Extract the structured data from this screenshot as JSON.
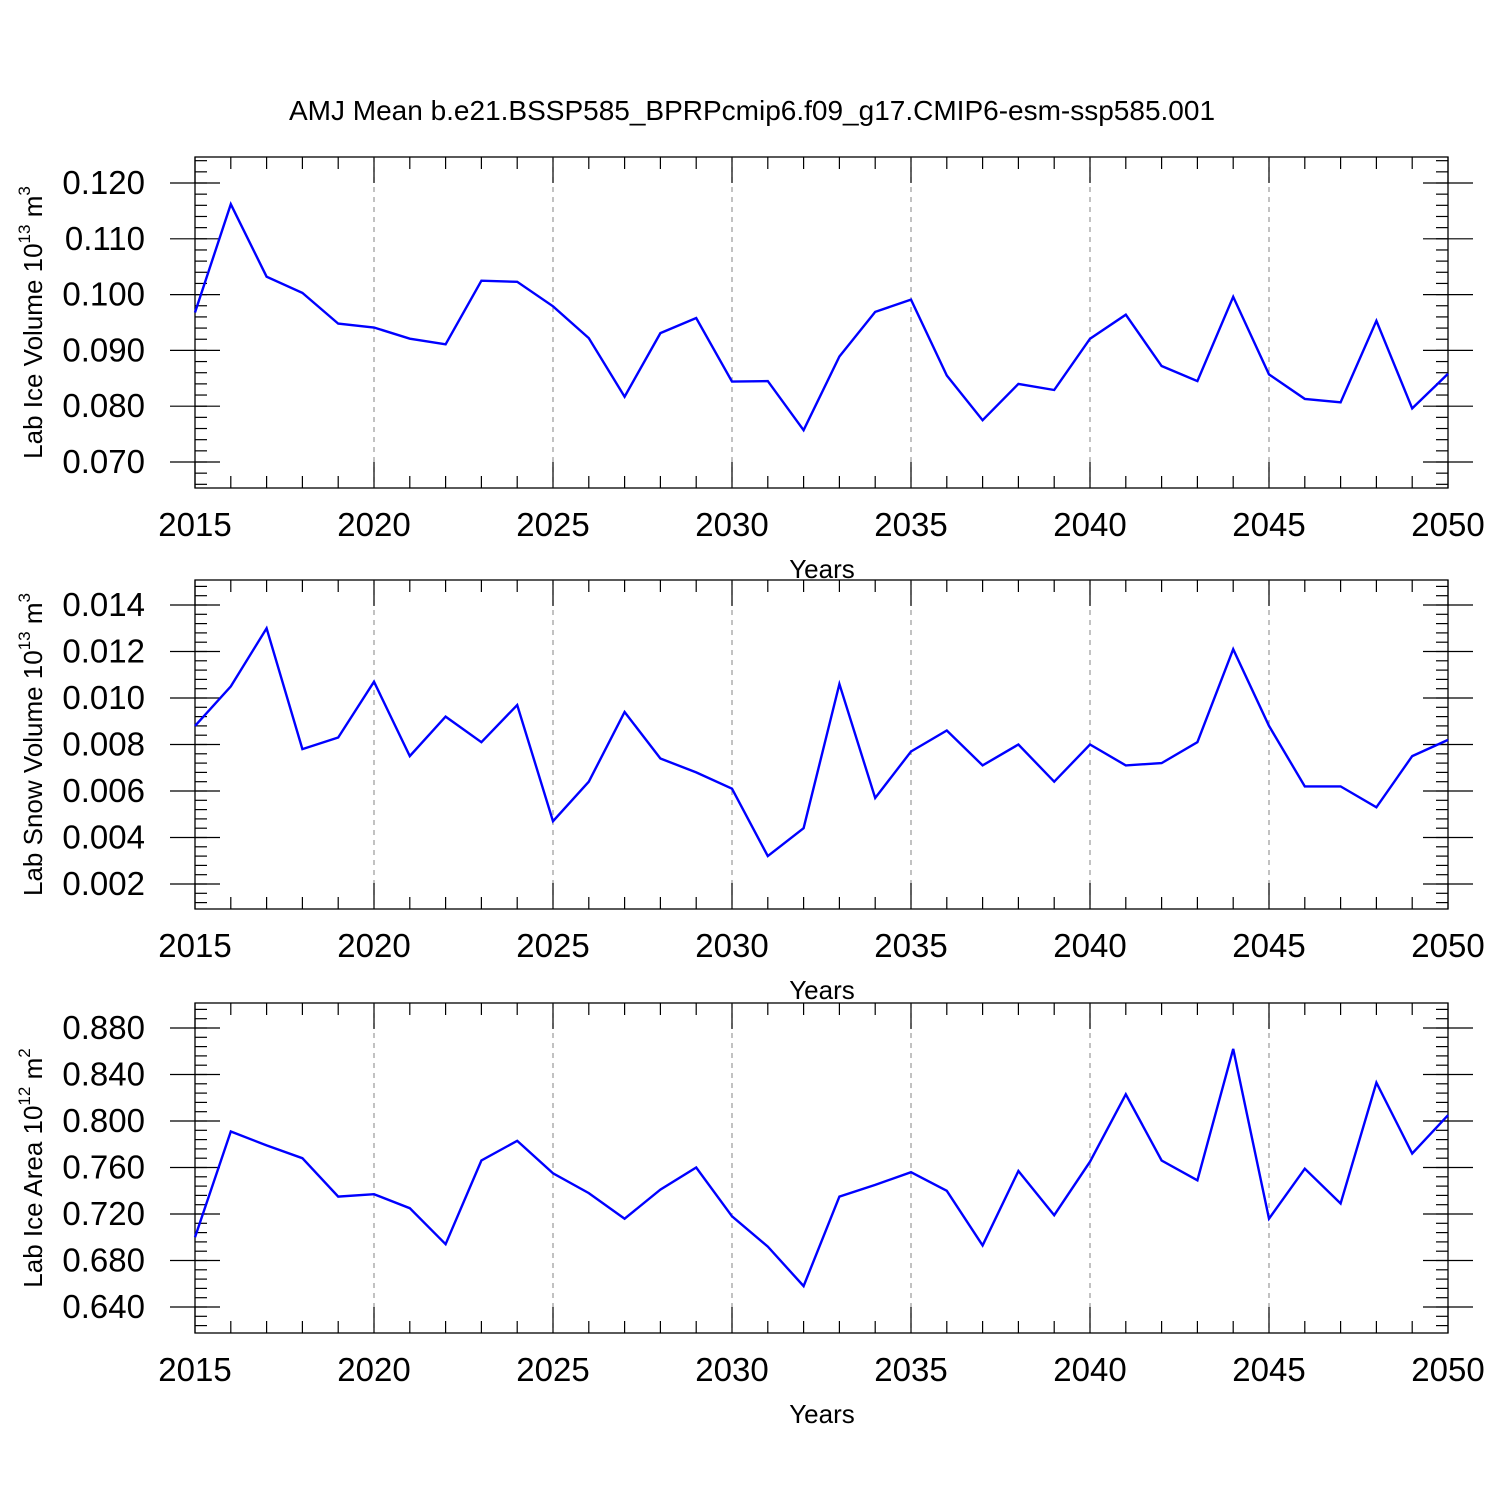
{
  "figure_title": "AMJ Mean b.e21.BSSP585_BPRPcmip6.f09_g17.CMIP6-esm-ssp585.001",
  "chart_data": [
    {
      "type": "line",
      "ylabel_main": "Lab Ice Volume 10",
      "ylabel_exp": "13",
      "ylabel_unit": " m",
      "ylabel_unit_exp": "3",
      "xlabel": "Years",
      "xlim": [
        2015,
        2050
      ],
      "ylim": [
        0.065,
        0.125
      ],
      "x_ticks": [
        2015,
        2020,
        2025,
        2030,
        2035,
        2040,
        2045,
        2050
      ],
      "x_tick_labels": [
        "2015",
        "2020",
        "2025",
        "2030",
        "2035",
        "2040",
        "2045",
        "2050"
      ],
      "y_ticks": [
        0.07,
        0.08,
        0.09,
        0.1,
        0.11,
        0.12
      ],
      "y_tick_labels": [
        "0.070",
        "0.080",
        "0.090",
        "0.100",
        "0.110",
        "0.120"
      ],
      "y_minor_step": 0.002,
      "grid": "vertical dashed at major x ticks",
      "line_color": "#0000ff",
      "x": [
        2015,
        2016,
        2017,
        2018,
        2019,
        2020,
        2021,
        2022,
        2023,
        2024,
        2025,
        2026,
        2027,
        2028,
        2029,
        2030,
        2031,
        2032,
        2033,
        2034,
        2035,
        2036,
        2037,
        2038,
        2039,
        2040,
        2041,
        2042,
        2043,
        2044,
        2045,
        2046,
        2047,
        2048,
        2049,
        2050
      ],
      "values": [
        0.0968,
        0.1162,
        0.1032,
        0.1003,
        0.0948,
        0.0941,
        0.0921,
        0.0911,
        0.1025,
        0.1023,
        0.0979,
        0.0922,
        0.0817,
        0.0931,
        0.0958,
        0.0844,
        0.0845,
        0.0757,
        0.0889,
        0.0969,
        0.0991,
        0.0855,
        0.0775,
        0.084,
        0.0829,
        0.0921,
        0.0964,
        0.0872,
        0.0845,
        0.0996,
        0.0857,
        0.0813,
        0.0807,
        0.0953,
        0.0796,
        0.0858
      ]
    },
    {
      "type": "line",
      "ylabel_main": "Lab Snow Volume 10",
      "ylabel_exp": "13",
      "ylabel_unit": " m",
      "ylabel_unit_exp": "3",
      "xlabel": "Years",
      "xlim": [
        2015,
        2050
      ],
      "ylim": [
        0.0015,
        0.015
      ],
      "x_ticks": [
        2015,
        2020,
        2025,
        2030,
        2035,
        2040,
        2045,
        2050
      ],
      "x_tick_labels": [
        "2015",
        "2020",
        "2025",
        "2030",
        "2035",
        "2040",
        "2045",
        "2050"
      ],
      "y_ticks": [
        0.002,
        0.004,
        0.006,
        0.008,
        0.01,
        0.012,
        0.014
      ],
      "y_tick_labels": [
        "0.002",
        "0.004",
        "0.006",
        "0.008",
        "0.010",
        "0.012",
        "0.014"
      ],
      "y_minor_step": 0.0004,
      "grid": "vertical dashed at major x ticks",
      "line_color": "#0000ff",
      "x": [
        2015,
        2016,
        2017,
        2018,
        2019,
        2020,
        2021,
        2022,
        2023,
        2024,
        2025,
        2026,
        2027,
        2028,
        2029,
        2030,
        2031,
        2032,
        2033,
        2034,
        2035,
        2036,
        2037,
        2038,
        2039,
        2040,
        2041,
        2042,
        2043,
        2044,
        2045,
        2046,
        2047,
        2048,
        2049,
        2050
      ],
      "values": [
        0.0088,
        0.0105,
        0.013,
        0.0078,
        0.0083,
        0.0107,
        0.0075,
        0.0092,
        0.0081,
        0.0097,
        0.0047,
        0.0064,
        0.0094,
        0.0074,
        0.0068,
        0.0061,
        0.0032,
        0.0044,
        0.0106,
        0.0057,
        0.0077,
        0.0086,
        0.0071,
        0.008,
        0.0064,
        0.008,
        0.0071,
        0.0072,
        0.0081,
        0.0121,
        0.0088,
        0.0062,
        0.0062,
        0.0053,
        0.0075,
        0.0082
      ]
    },
    {
      "type": "line",
      "ylabel_main": "Lab Ice Area 10",
      "ylabel_exp": "12",
      "ylabel_unit": " m",
      "ylabel_unit_exp": "2",
      "xlabel": "Years",
      "xlim": [
        2015,
        2050
      ],
      "ylim": [
        0.63,
        0.89
      ],
      "x_ticks": [
        2015,
        2020,
        2025,
        2030,
        2035,
        2040,
        2045,
        2050
      ],
      "x_tick_labels": [
        "2015",
        "2020",
        "2025",
        "2030",
        "2035",
        "2040",
        "2045",
        "2050"
      ],
      "y_ticks": [
        0.64,
        0.68,
        0.72,
        0.76,
        0.8,
        0.84,
        0.88
      ],
      "y_tick_labels": [
        "0.640",
        "0.680",
        "0.720",
        "0.760",
        "0.800",
        "0.840",
        "0.880"
      ],
      "y_minor_step": 0.008,
      "grid": "vertical dashed at major x ticks",
      "line_color": "#0000ff",
      "x": [
        2015,
        2016,
        2017,
        2018,
        2019,
        2020,
        2021,
        2022,
        2023,
        2024,
        2025,
        2026,
        2027,
        2028,
        2029,
        2030,
        2031,
        2032,
        2033,
        2034,
        2035,
        2036,
        2037,
        2038,
        2039,
        2040,
        2041,
        2042,
        2043,
        2044,
        2045,
        2046,
        2047,
        2048,
        2049,
        2050
      ],
      "values": [
        0.7,
        0.791,
        0.779,
        0.768,
        0.735,
        0.737,
        0.725,
        0.694,
        0.766,
        0.783,
        0.755,
        0.738,
        0.716,
        0.741,
        0.76,
        0.718,
        0.692,
        0.658,
        0.735,
        0.745,
        0.756,
        0.74,
        0.693,
        0.757,
        0.719,
        0.765,
        0.823,
        0.766,
        0.749,
        0.862,
        0.716,
        0.759,
        0.729,
        0.833,
        0.772,
        0.805
      ]
    }
  ]
}
